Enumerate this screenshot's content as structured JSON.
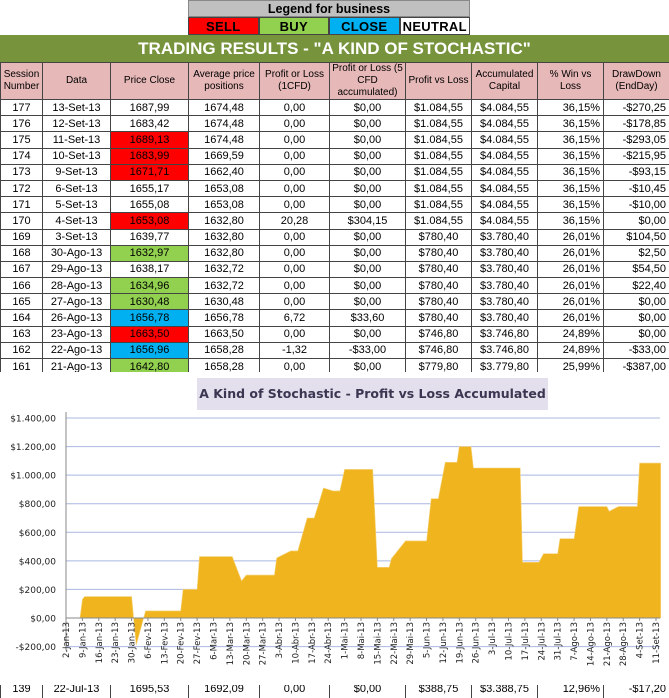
{
  "legend": {
    "title": "Legend for business",
    "items": [
      {
        "label": "SELL",
        "color": "#ff0000"
      },
      {
        "label": "BUY",
        "color": "#92d050"
      },
      {
        "label": "CLOSE",
        "color": "#00b0f0"
      },
      {
        "label": "NEUTRAL",
        "color": "#ffffff"
      }
    ]
  },
  "title": "TRADING RESULTS - \"A KIND OF STOCHASTIC\"",
  "table": {
    "headers": [
      "Session Number",
      "Data",
      "Price Close",
      "Average price positions",
      "Profit or Loss (1CFD)",
      "Profit or Loss (5 CFD accumulated)",
      "Profit vs Loss",
      "Accumulated Capital",
      "% Win vs Loss",
      "DrawDown (EndDay)"
    ],
    "rows": [
      {
        "cells": [
          "177",
          "13-Set-13",
          "1687,99",
          "1674,48",
          "0,00",
          "$0,00",
          "$1.084,55",
          "$4.084,55",
          "36,15%",
          "-$270,25"
        ],
        "signal": "NEUTRAL"
      },
      {
        "cells": [
          "176",
          "12-Set-13",
          "1683,42",
          "1674,48",
          "0,00",
          "$0,00",
          "$1.084,55",
          "$4.084,55",
          "36,15%",
          "-$178,85"
        ],
        "signal": "NEUTRAL"
      },
      {
        "cells": [
          "175",
          "11-Set-13",
          "1689,13",
          "1674,48",
          "0,00",
          "$0,00",
          "$1.084,55",
          "$4.084,55",
          "36,15%",
          "-$293,05"
        ],
        "signal": "SELL"
      },
      {
        "cells": [
          "174",
          "10-Set-13",
          "1683,99",
          "1669,59",
          "0,00",
          "$0,00",
          "$1.084,55",
          "$4.084,55",
          "36,15%",
          "-$215,95"
        ],
        "signal": "SELL"
      },
      {
        "cells": [
          "173",
          "9-Set-13",
          "1671,71",
          "1662,40",
          "0,00",
          "$0,00",
          "$1.084,55",
          "$4.084,55",
          "36,15%",
          "-$93,15"
        ],
        "signal": "SELL"
      },
      {
        "cells": [
          "172",
          "6-Set-13",
          "1655,17",
          "1653,08",
          "0,00",
          "$0,00",
          "$1.084,55",
          "$4.084,55",
          "36,15%",
          "-$10,45"
        ],
        "signal": "NEUTRAL"
      },
      {
        "cells": [
          "171",
          "5-Set-13",
          "1655,08",
          "1653,08",
          "0,00",
          "$0,00",
          "$1.084,55",
          "$4.084,55",
          "36,15%",
          "-$10,00"
        ],
        "signal": "NEUTRAL"
      },
      {
        "cells": [
          "170",
          "4-Set-13",
          "1653,08",
          "1632,80",
          "20,28",
          "$304,15",
          "$1.084,55",
          "$4.084,55",
          "36,15%",
          "$0,00"
        ],
        "signal": "SELL"
      },
      {
        "cells": [
          "169",
          "3-Set-13",
          "1639,77",
          "1632,80",
          "0,00",
          "$0,00",
          "$780,40",
          "$3.780,40",
          "26,01%",
          "$104,50"
        ],
        "signal": "NEUTRAL"
      },
      {
        "cells": [
          "168",
          "30-Ago-13",
          "1632,97",
          "1632,80",
          "0,00",
          "$0,00",
          "$780,40",
          "$3.780,40",
          "26,01%",
          "$2,50"
        ],
        "signal": "BUY"
      },
      {
        "cells": [
          "167",
          "29-Ago-13",
          "1638,17",
          "1632,72",
          "0,00",
          "$0,00",
          "$780,40",
          "$3.780,40",
          "26,01%",
          "$54,50"
        ],
        "signal": "NEUTRAL"
      },
      {
        "cells": [
          "166",
          "28-Ago-13",
          "1634,96",
          "1632,72",
          "0,00",
          "$0,00",
          "$780,40",
          "$3.780,40",
          "26,01%",
          "$22,40"
        ],
        "signal": "BUY"
      },
      {
        "cells": [
          "165",
          "27-Ago-13",
          "1630,48",
          "1630,48",
          "0,00",
          "$0,00",
          "$780,40",
          "$3.780,40",
          "26,01%",
          "$0,00"
        ],
        "signal": "BUY"
      },
      {
        "cells": [
          "164",
          "26-Ago-13",
          "1656,78",
          "1656,78",
          "6,72",
          "$33,60",
          "$780,40",
          "$3.780,40",
          "26,01%",
          "$0,00"
        ],
        "signal": "CLOSE"
      },
      {
        "cells": [
          "163",
          "23-Ago-13",
          "1663,50",
          "1663,50",
          "0,00",
          "$0,00",
          "$746,80",
          "$3.746,80",
          "24,89%",
          "$0,00"
        ],
        "signal": "SELL"
      },
      {
        "cells": [
          "162",
          "22-Ago-13",
          "1656,96",
          "1658,28",
          "-1,32",
          "-$33,00",
          "$746,80",
          "$3.746,80",
          "24,89%",
          "-$33,00"
        ],
        "signal": "CLOSE"
      },
      {
        "cells": [
          "161",
          "21-Ago-13",
          "1642,80",
          "1658,28",
          "0,00",
          "$0,00",
          "$779,80",
          "$3.779,80",
          "25,99%",
          "-$387,00"
        ],
        "signal": "BUY"
      }
    ],
    "partial_row": {
      "cells": [
        "139",
        "22-Jul-13",
        "1695,53",
        "1692,09",
        "0,00",
        "$0,00",
        "$388,75",
        "$3.388,75",
        "12,96%",
        "-$17,20"
      ]
    }
  },
  "chart_data": {
    "type": "area",
    "title": "A Kind of Stochastic - Profit vs Loss Accumulated",
    "xlabel": "",
    "ylabel": "",
    "ylim": [
      -200,
      1400
    ],
    "yticks": [
      "-$200,00",
      "$0,00",
      "$200,00",
      "$400,00",
      "$600,00",
      "$800,00",
      "$1.000,00",
      "$1.200,00",
      "$1.400,00"
    ],
    "xlim": [
      "2013-01-02",
      "2013-09-11"
    ],
    "xticks": [
      "2-Jan-13",
      "9-Jan-13",
      "16-Jan-13",
      "23-Jan-13",
      "30-Jan-13",
      "6-Fev-13",
      "13-Fev-13",
      "20-Fev-13",
      "27-Fev-13",
      "6-Mar-13",
      "13-Mar-13",
      "20-Mar-13",
      "27-Mar-13",
      "3-Abr-13",
      "10-Abr-13",
      "17-Abr-13",
      "24-Abr-13",
      "1-Mai-13",
      "8-Mai-13",
      "15-Mai-13",
      "22-Mai-13",
      "29-Mai-13",
      "5-Jun-13",
      "12-Jun-13",
      "19-Jun-13",
      "26-Jun-13",
      "3-Jul-13",
      "10-Jul-13",
      "17-Jul-13",
      "24-Jul-13",
      "31-Jul-13",
      "7-Ago-13",
      "14-Ago-13",
      "21-Ago-13",
      "28-Ago-13",
      "4-Set-13",
      "11-Set-13"
    ],
    "grid": true,
    "color": "#f0b41e",
    "x": [
      "2013-01-08",
      "2013-01-09",
      "2013-01-10",
      "2013-01-30",
      "2013-02-01",
      "2013-02-05",
      "2013-02-20",
      "2013-02-21",
      "2013-02-27",
      "2013-02-28",
      "2013-03-14",
      "2013-03-18",
      "2013-03-20",
      "2013-04-01",
      "2013-04-02",
      "2013-04-08",
      "2013-04-11",
      "2013-04-15",
      "2013-04-18",
      "2013-04-22",
      "2013-04-26",
      "2013-04-29",
      "2013-05-01",
      "2013-05-13",
      "2013-05-15",
      "2013-05-20",
      "2013-05-21",
      "2013-05-27",
      "2013-06-05",
      "2013-06-07",
      "2013-06-10",
      "2013-06-11",
      "2013-06-13",
      "2013-06-18",
      "2013-06-19",
      "2013-06-24",
      "2013-06-25",
      "2013-07-15",
      "2013-07-16",
      "2013-07-23",
      "2013-07-25",
      "2013-07-31",
      "2013-08-01",
      "2013-08-07",
      "2013-08-09",
      "2013-08-21",
      "2013-08-22",
      "2013-08-26",
      "2013-09-03",
      "2013-09-04",
      "2013-09-13"
    ],
    "values": [
      0,
      130,
      150,
      150,
      -190,
      50,
      50,
      200,
      200,
      430,
      430,
      260,
      300,
      300,
      420,
      470,
      470,
      700,
      700,
      910,
      890,
      890,
      1040,
      1040,
      355,
      355,
      415,
      540,
      540,
      835,
      835,
      920,
      1090,
      1090,
      1200,
      1200,
      1050,
      1050,
      390,
      390,
      450,
      450,
      555,
      555,
      780,
      780,
      746.8,
      780.4,
      780.4,
      1084.55,
      1084.55
    ]
  }
}
